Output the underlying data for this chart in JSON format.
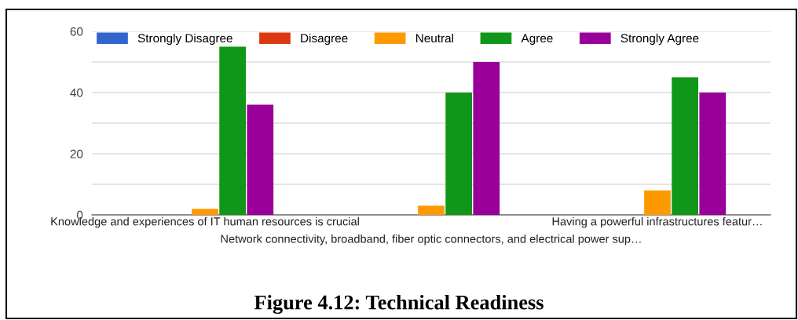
{
  "chart_data": {
    "type": "bar",
    "title": "Figure 4.12: Technical Readiness",
    "categories": [
      "Knowledge and experiences of IT human resources is crucial",
      "Network connectivity, broadband, fiber optic connectors, and electrical power sup…",
      "Having a powerful infrastructures featur…"
    ],
    "series": [
      {
        "name": "Strongly Disagree",
        "color": "#3366cc",
        "values": [
          0,
          0,
          0
        ]
      },
      {
        "name": "Disagree",
        "color": "#dc3912",
        "values": [
          0,
          0,
          0
        ]
      },
      {
        "name": "Neutral",
        "color": "#ff9900",
        "values": [
          2,
          3,
          8
        ]
      },
      {
        "name": "Agree",
        "color": "#109618",
        "values": [
          55,
          40,
          45
        ]
      },
      {
        "name": "Strongly Agree",
        "color": "#990099",
        "values": [
          36,
          50,
          40
        ]
      }
    ],
    "ylim": [
      0,
      60
    ],
    "yticks": [
      0,
      {
        "value": 10,
        "label": null
      },
      20,
      {
        "value": 30,
        "label": null
      },
      40,
      {
        "value": 50,
        "label": null
      },
      60
    ],
    "grid": "y",
    "legend": "top"
  }
}
